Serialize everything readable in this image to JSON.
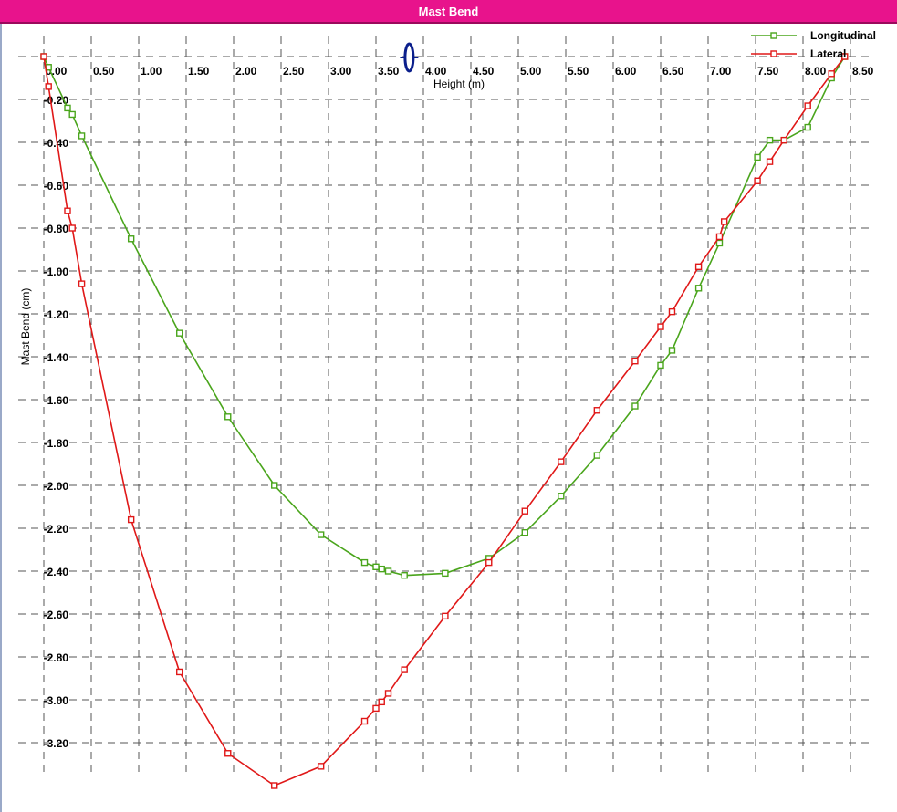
{
  "window": {
    "title": "Mast Bend"
  },
  "chart_data": {
    "type": "line",
    "title": "Mast Bend",
    "xlabel": "Height (m)",
    "ylabel": "Mast Bend (cm)",
    "xlim": [
      0,
      8.5
    ],
    "ylim": [
      -3.4,
      0
    ],
    "x_ticks": [
      "0.00",
      "0.50",
      "1.00",
      "1.50",
      "2.00",
      "2.50",
      "3.00",
      "3.50",
      "4.00",
      "4.50",
      "5.00",
      "5.50",
      "6.00",
      "6.50",
      "7.00",
      "7.50",
      "8.00",
      "8.50"
    ],
    "y_ticks": [
      "0.00",
      "-0.20",
      "-0.40",
      "-0.60",
      "-0.80",
      "-1.00",
      "-1.20",
      "-1.40",
      "-1.60",
      "-1.80",
      "-2.00",
      "-2.20",
      "-2.40",
      "-2.60",
      "-2.80",
      "-3.00",
      "-3.20"
    ],
    "grid": true,
    "legend_position": "top-right",
    "series": [
      {
        "name": "Longitudinal",
        "color": "#4aa51c",
        "points": [
          [
            0.0,
            0.0
          ],
          [
            0.05,
            -0.05
          ],
          [
            0.25,
            -0.24
          ],
          [
            0.3,
            -0.27
          ],
          [
            0.4,
            -0.37
          ],
          [
            0.92,
            -0.85
          ],
          [
            1.43,
            -1.29
          ],
          [
            1.94,
            -1.68
          ],
          [
            2.43,
            -2.0
          ],
          [
            2.92,
            -2.23
          ],
          [
            3.38,
            -2.36
          ],
          [
            3.5,
            -2.38
          ],
          [
            3.56,
            -2.39
          ],
          [
            3.63,
            -2.4
          ],
          [
            3.8,
            -2.42
          ],
          [
            4.23,
            -2.41
          ],
          [
            4.69,
            -2.34
          ],
          [
            5.07,
            -2.22
          ],
          [
            5.45,
            -2.05
          ],
          [
            5.83,
            -1.86
          ],
          [
            6.23,
            -1.63
          ],
          [
            6.5,
            -1.44
          ],
          [
            6.62,
            -1.37
          ],
          [
            6.9,
            -1.08
          ],
          [
            7.12,
            -0.87
          ],
          [
            7.52,
            -0.47
          ],
          [
            7.65,
            -0.39
          ],
          [
            7.8,
            -0.39
          ],
          [
            8.05,
            -0.33
          ],
          [
            8.3,
            -0.1
          ],
          [
            8.44,
            0.0
          ]
        ]
      },
      {
        "name": "Lateral",
        "color": "#e01818",
        "points": [
          [
            0.0,
            0.0
          ],
          [
            0.05,
            -0.14
          ],
          [
            0.25,
            -0.72
          ],
          [
            0.3,
            -0.8
          ],
          [
            0.4,
            -1.06
          ],
          [
            0.92,
            -2.16
          ],
          [
            1.43,
            -2.87
          ],
          [
            1.94,
            -3.25
          ],
          [
            2.43,
            -3.4
          ],
          [
            2.92,
            -3.31
          ],
          [
            3.38,
            -3.1
          ],
          [
            3.5,
            -3.04
          ],
          [
            3.56,
            -3.01
          ],
          [
            3.63,
            -2.97
          ],
          [
            3.8,
            -2.86
          ],
          [
            4.23,
            -2.61
          ],
          [
            4.69,
            -2.36
          ],
          [
            5.07,
            -2.12
          ],
          [
            5.45,
            -1.89
          ],
          [
            5.83,
            -1.65
          ],
          [
            6.23,
            -1.42
          ],
          [
            6.5,
            -1.26
          ],
          [
            6.62,
            -1.19
          ],
          [
            6.9,
            -0.98
          ],
          [
            7.12,
            -0.84
          ],
          [
            7.17,
            -0.77
          ],
          [
            7.52,
            -0.58
          ],
          [
            7.65,
            -0.49
          ],
          [
            7.8,
            -0.39
          ],
          [
            8.05,
            -0.23
          ],
          [
            8.3,
            -0.08
          ],
          [
            8.44,
            0.0
          ]
        ]
      }
    ],
    "cursor": {
      "x_value": 3.85,
      "color": "#0b1f8c"
    }
  }
}
